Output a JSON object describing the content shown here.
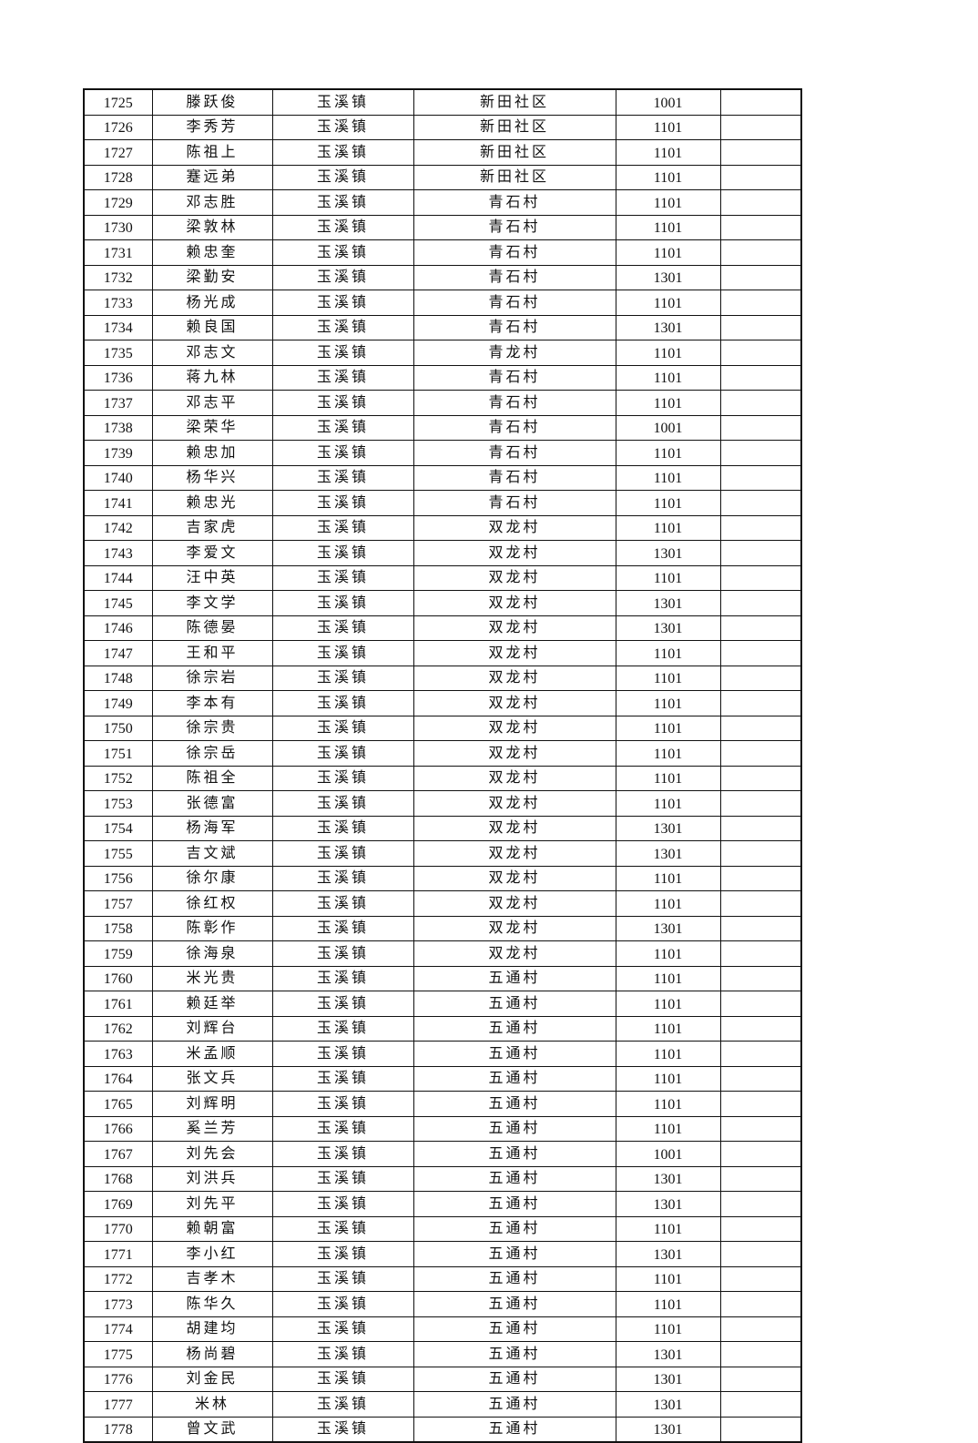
{
  "table": {
    "rows": [
      [
        "1725",
        "滕跃俊",
        "玉溪镇",
        "新田社区",
        "1001",
        ""
      ],
      [
        "1726",
        "李秀芳",
        "玉溪镇",
        "新田社区",
        "1101",
        ""
      ],
      [
        "1727",
        "陈祖上",
        "玉溪镇",
        "新田社区",
        "1101",
        ""
      ],
      [
        "1728",
        "蹇远弟",
        "玉溪镇",
        "新田社区",
        "1101",
        ""
      ],
      [
        "1729",
        "邓志胜",
        "玉溪镇",
        "青石村",
        "1101",
        ""
      ],
      [
        "1730",
        "梁敦林",
        "玉溪镇",
        "青石村",
        "1101",
        ""
      ],
      [
        "1731",
        "赖忠奎",
        "玉溪镇",
        "青石村",
        "1101",
        ""
      ],
      [
        "1732",
        "梁勤安",
        "玉溪镇",
        "青石村",
        "1301",
        ""
      ],
      [
        "1733",
        "杨光成",
        "玉溪镇",
        "青石村",
        "1101",
        ""
      ],
      [
        "1734",
        "赖良国",
        "玉溪镇",
        "青石村",
        "1301",
        ""
      ],
      [
        "1735",
        "邓志文",
        "玉溪镇",
        "青龙村",
        "1101",
        ""
      ],
      [
        "1736",
        "蒋九林",
        "玉溪镇",
        "青石村",
        "1101",
        ""
      ],
      [
        "1737",
        "邓志平",
        "玉溪镇",
        "青石村",
        "1101",
        ""
      ],
      [
        "1738",
        "梁荣华",
        "玉溪镇",
        "青石村",
        "1001",
        ""
      ],
      [
        "1739",
        "赖忠加",
        "玉溪镇",
        "青石村",
        "1101",
        ""
      ],
      [
        "1740",
        "杨华兴",
        "玉溪镇",
        "青石村",
        "1101",
        ""
      ],
      [
        "1741",
        "赖忠光",
        "玉溪镇",
        "青石村",
        "1101",
        ""
      ],
      [
        "1742",
        "吉家虎",
        "玉溪镇",
        "双龙村",
        "1101",
        ""
      ],
      [
        "1743",
        "李爱文",
        "玉溪镇",
        "双龙村",
        "1301",
        ""
      ],
      [
        "1744",
        "汪中英",
        "玉溪镇",
        "双龙村",
        "1101",
        ""
      ],
      [
        "1745",
        "李文学",
        "玉溪镇",
        "双龙村",
        "1301",
        ""
      ],
      [
        "1746",
        "陈德晏",
        "玉溪镇",
        "双龙村",
        "1301",
        ""
      ],
      [
        "1747",
        "王和平",
        "玉溪镇",
        "双龙村",
        "1101",
        ""
      ],
      [
        "1748",
        "徐宗岩",
        "玉溪镇",
        "双龙村",
        "1101",
        ""
      ],
      [
        "1749",
        "李本有",
        "玉溪镇",
        "双龙村",
        "1101",
        ""
      ],
      [
        "1750",
        "徐宗贵",
        "玉溪镇",
        "双龙村",
        "1101",
        ""
      ],
      [
        "1751",
        "徐宗岳",
        "玉溪镇",
        "双龙村",
        "1101",
        ""
      ],
      [
        "1752",
        "陈祖全",
        "玉溪镇",
        "双龙村",
        "1101",
        ""
      ],
      [
        "1753",
        "张德富",
        "玉溪镇",
        "双龙村",
        "1101",
        ""
      ],
      [
        "1754",
        "杨海军",
        "玉溪镇",
        "双龙村",
        "1301",
        ""
      ],
      [
        "1755",
        "吉文斌",
        "玉溪镇",
        "双龙村",
        "1301",
        ""
      ],
      [
        "1756",
        "徐尔康",
        "玉溪镇",
        "双龙村",
        "1101",
        ""
      ],
      [
        "1757",
        "徐红权",
        "玉溪镇",
        "双龙村",
        "1101",
        ""
      ],
      [
        "1758",
        "陈彰作",
        "玉溪镇",
        "双龙村",
        "1301",
        ""
      ],
      [
        "1759",
        "徐海泉",
        "玉溪镇",
        "双龙村",
        "1101",
        ""
      ],
      [
        "1760",
        "米光贵",
        "玉溪镇",
        "五通村",
        "1101",
        ""
      ],
      [
        "1761",
        "赖廷举",
        "玉溪镇",
        "五通村",
        "1101",
        ""
      ],
      [
        "1762",
        "刘辉台",
        "玉溪镇",
        "五通村",
        "1101",
        ""
      ],
      [
        "1763",
        "米孟顺",
        "玉溪镇",
        "五通村",
        "1101",
        ""
      ],
      [
        "1764",
        "张文兵",
        "玉溪镇",
        "五通村",
        "1101",
        ""
      ],
      [
        "1765",
        "刘辉明",
        "玉溪镇",
        "五通村",
        "1101",
        ""
      ],
      [
        "1766",
        "奚兰芳",
        "玉溪镇",
        "五通村",
        "1101",
        ""
      ],
      [
        "1767",
        "刘先会",
        "玉溪镇",
        "五通村",
        "1001",
        ""
      ],
      [
        "1768",
        "刘洪兵",
        "玉溪镇",
        "五通村",
        "1301",
        ""
      ],
      [
        "1769",
        "刘先平",
        "玉溪镇",
        "五通村",
        "1301",
        ""
      ],
      [
        "1770",
        "赖朝富",
        "玉溪镇",
        "五通村",
        "1101",
        ""
      ],
      [
        "1771",
        "李小红",
        "玉溪镇",
        "五通村",
        "1301",
        ""
      ],
      [
        "1772",
        "吉孝木",
        "玉溪镇",
        "五通村",
        "1101",
        ""
      ],
      [
        "1773",
        "陈华久",
        "玉溪镇",
        "五通村",
        "1101",
        ""
      ],
      [
        "1774",
        "胡建均",
        "玉溪镇",
        "五通村",
        "1101",
        ""
      ],
      [
        "1775",
        "杨尚碧",
        "玉溪镇",
        "五通村",
        "1301",
        ""
      ],
      [
        "1776",
        "刘金民",
        "玉溪镇",
        "五通村",
        "1301",
        ""
      ],
      [
        "1777",
        "米林",
        "玉溪镇",
        "五通村",
        "1301",
        ""
      ],
      [
        "1778",
        "曾文武",
        "玉溪镇",
        "五通村",
        "1301",
        ""
      ]
    ]
  }
}
